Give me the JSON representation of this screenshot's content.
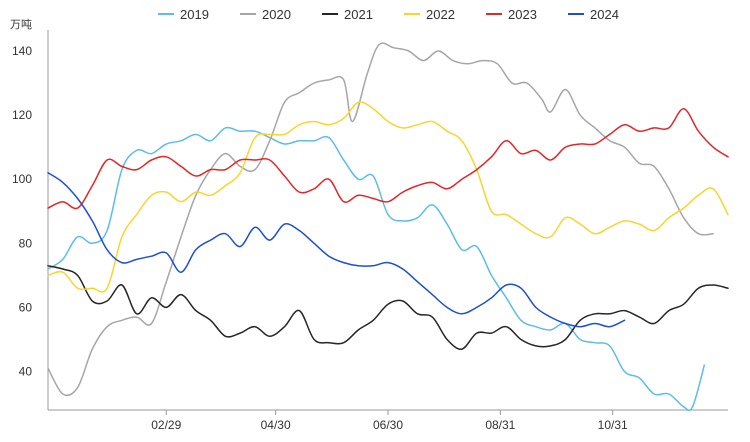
{
  "chart_data": {
    "type": "line",
    "unit": "万吨",
    "x_ticks": [
      "02/29",
      "04/30",
      "06/30",
      "08/31",
      "10/31"
    ],
    "ylim": [
      28,
      145
    ],
    "y_ticks": [
      40,
      60,
      80,
      100,
      120,
      140
    ],
    "grid": false,
    "legend_position": "top",
    "series": [
      {
        "name": "2019",
        "color": "#5bbcf0",
        "points": [
          [
            0,
            72
          ],
          [
            0.5,
            75
          ],
          [
            1,
            82
          ],
          [
            1.5,
            80
          ],
          [
            2,
            84
          ],
          [
            2.5,
            103
          ],
          [
            3,
            109
          ],
          [
            3.5,
            108
          ],
          [
            4,
            111
          ],
          [
            4.5,
            112
          ],
          [
            5,
            114
          ],
          [
            5.5,
            112
          ],
          [
            6,
            116
          ],
          [
            6.5,
            115
          ],
          [
            7,
            115
          ],
          [
            7.5,
            113
          ],
          [
            8,
            111
          ],
          [
            8.5,
            112
          ],
          [
            9,
            112
          ],
          [
            9.5,
            113
          ],
          [
            10,
            106
          ],
          [
            10.5,
            100
          ],
          [
            11,
            101
          ],
          [
            11.5,
            89
          ],
          [
            12,
            87
          ],
          [
            12.5,
            88
          ],
          [
            13,
            92
          ],
          [
            13.5,
            86
          ],
          [
            14,
            78
          ],
          [
            14.5,
            79
          ],
          [
            15,
            70
          ],
          [
            15.5,
            63
          ],
          [
            16,
            56
          ],
          [
            16.5,
            54
          ],
          [
            17,
            53
          ],
          [
            17.5,
            55
          ],
          [
            18,
            50
          ],
          [
            18.5,
            49
          ],
          [
            19,
            48
          ],
          [
            19.5,
            40
          ],
          [
            20,
            38
          ],
          [
            20.5,
            33
          ],
          [
            21,
            33
          ],
          [
            21.5,
            29
          ],
          [
            21.8,
            29
          ],
          [
            22.2,
            42
          ]
        ]
      },
      {
        "name": "2020",
        "color": "#a6a6a6",
        "points": [
          [
            0,
            41
          ],
          [
            0.5,
            33
          ],
          [
            1,
            35
          ],
          [
            1.5,
            47
          ],
          [
            2,
            54
          ],
          [
            2.5,
            56
          ],
          [
            3,
            57
          ],
          [
            3.5,
            55
          ],
          [
            4,
            68
          ],
          [
            4.5,
            82
          ],
          [
            5,
            95
          ],
          [
            5.5,
            103
          ],
          [
            6,
            108
          ],
          [
            6.5,
            104
          ],
          [
            7,
            103
          ],
          [
            7.5,
            112
          ],
          [
            8,
            124
          ],
          [
            8.5,
            127
          ],
          [
            9,
            130
          ],
          [
            9.5,
            131
          ],
          [
            10,
            131
          ],
          [
            10.3,
            118
          ],
          [
            10.8,
            133
          ],
          [
            11.2,
            142
          ],
          [
            11.7,
            141
          ],
          [
            12.2,
            140
          ],
          [
            12.7,
            137
          ],
          [
            13.2,
            140
          ],
          [
            13.7,
            137
          ],
          [
            14.2,
            136
          ],
          [
            14.7,
            137
          ],
          [
            15.2,
            136
          ],
          [
            15.7,
            130
          ],
          [
            16.2,
            130
          ],
          [
            16.7,
            125
          ],
          [
            17,
            121
          ],
          [
            17.5,
            128
          ],
          [
            18,
            120
          ],
          [
            18.5,
            116
          ],
          [
            19,
            112
          ],
          [
            19.5,
            110
          ],
          [
            20,
            105
          ],
          [
            20.5,
            104
          ],
          [
            21,
            97
          ],
          [
            21.5,
            88
          ],
          [
            22,
            83
          ],
          [
            22.5,
            83
          ]
        ]
      },
      {
        "name": "2021",
        "color": "#262626",
        "points": [
          [
            0,
            73
          ],
          [
            0.5,
            72
          ],
          [
            1,
            70
          ],
          [
            1.5,
            62
          ],
          [
            2,
            62
          ],
          [
            2.5,
            67
          ],
          [
            3,
            58
          ],
          [
            3.5,
            63
          ],
          [
            4,
            60
          ],
          [
            4.5,
            64
          ],
          [
            5,
            59
          ],
          [
            5.5,
            56
          ],
          [
            6,
            51
          ],
          [
            6.5,
            52
          ],
          [
            7,
            54
          ],
          [
            7.5,
            51
          ],
          [
            8,
            54
          ],
          [
            8.5,
            59
          ],
          [
            9,
            50
          ],
          [
            9.5,
            49
          ],
          [
            10,
            49
          ],
          [
            10.5,
            53
          ],
          [
            11,
            56
          ],
          [
            11.5,
            61
          ],
          [
            12,
            62
          ],
          [
            12.5,
            58
          ],
          [
            13,
            57
          ],
          [
            13.5,
            50
          ],
          [
            14,
            47
          ],
          [
            14.5,
            52
          ],
          [
            15,
            52
          ],
          [
            15.5,
            54
          ],
          [
            16,
            50
          ],
          [
            16.5,
            48
          ],
          [
            17,
            48
          ],
          [
            17.5,
            50
          ],
          [
            18,
            56
          ],
          [
            18.5,
            58
          ],
          [
            19,
            58
          ],
          [
            19.5,
            59
          ],
          [
            20,
            57
          ],
          [
            20.5,
            55
          ],
          [
            21,
            59
          ],
          [
            21.5,
            61
          ],
          [
            22,
            66
          ],
          [
            22.5,
            67
          ],
          [
            23,
            66
          ]
        ]
      },
      {
        "name": "2022",
        "color": "#fbd42b",
        "points": [
          [
            0,
            70
          ],
          [
            0.5,
            71
          ],
          [
            1,
            66
          ],
          [
            1.5,
            66
          ],
          [
            2,
            66
          ],
          [
            2.5,
            82
          ],
          [
            3,
            89
          ],
          [
            3.5,
            95
          ],
          [
            4,
            96
          ],
          [
            4.5,
            93
          ],
          [
            5,
            96
          ],
          [
            5.5,
            95
          ],
          [
            6,
            98
          ],
          [
            6.5,
            102
          ],
          [
            7,
            113
          ],
          [
            7.5,
            114
          ],
          [
            8,
            114
          ],
          [
            8.5,
            117
          ],
          [
            9,
            118
          ],
          [
            9.5,
            117
          ],
          [
            10,
            119
          ],
          [
            10.5,
            124
          ],
          [
            11,
            122
          ],
          [
            11.5,
            118
          ],
          [
            12,
            116
          ],
          [
            12.5,
            117
          ],
          [
            13,
            118
          ],
          [
            13.5,
            115
          ],
          [
            14,
            112
          ],
          [
            14.5,
            103
          ],
          [
            15,
            90
          ],
          [
            15.5,
            89
          ],
          [
            16,
            86
          ],
          [
            16.5,
            83
          ],
          [
            17,
            82
          ],
          [
            17.5,
            88
          ],
          [
            18,
            86
          ],
          [
            18.5,
            83
          ],
          [
            19,
            85
          ],
          [
            19.5,
            87
          ],
          [
            20,
            86
          ],
          [
            20.5,
            84
          ],
          [
            21,
            88
          ],
          [
            21.5,
            91
          ],
          [
            22,
            95
          ],
          [
            22.5,
            97
          ],
          [
            23,
            89
          ]
        ]
      },
      {
        "name": "2023",
        "color": "#e32626",
        "points": [
          [
            0,
            91
          ],
          [
            0.5,
            93
          ],
          [
            1,
            91
          ],
          [
            1.5,
            98
          ],
          [
            2,
            106
          ],
          [
            2.5,
            104
          ],
          [
            3,
            103
          ],
          [
            3.5,
            106
          ],
          [
            4,
            107
          ],
          [
            4.5,
            104
          ],
          [
            5,
            101
          ],
          [
            5.5,
            103
          ],
          [
            6,
            103
          ],
          [
            6.5,
            106
          ],
          [
            7,
            106
          ],
          [
            7.5,
            106
          ],
          [
            8,
            101
          ],
          [
            8.5,
            96
          ],
          [
            9,
            97
          ],
          [
            9.5,
            100
          ],
          [
            10,
            93
          ],
          [
            10.5,
            95
          ],
          [
            11,
            94
          ],
          [
            11.5,
            93
          ],
          [
            12,
            96
          ],
          [
            12.5,
            98
          ],
          [
            13,
            99
          ],
          [
            13.5,
            97
          ],
          [
            14,
            100
          ],
          [
            14.5,
            103
          ],
          [
            15,
            107
          ],
          [
            15.5,
            112
          ],
          [
            16,
            108
          ],
          [
            16.5,
            109
          ],
          [
            17,
            106
          ],
          [
            17.5,
            110
          ],
          [
            18,
            111
          ],
          [
            18.5,
            111
          ],
          [
            19,
            114
          ],
          [
            19.5,
            117
          ],
          [
            20,
            115
          ],
          [
            20.5,
            116
          ],
          [
            21,
            116
          ],
          [
            21.5,
            122
          ],
          [
            22,
            115
          ],
          [
            22.5,
            110
          ],
          [
            23,
            107
          ]
        ]
      },
      {
        "name": "2024",
        "color": "#1c4fd4",
        "points": [
          [
            0,
            102
          ],
          [
            0.5,
            99
          ],
          [
            1,
            94
          ],
          [
            1.5,
            87
          ],
          [
            2,
            78
          ],
          [
            2.5,
            74
          ],
          [
            3,
            75
          ],
          [
            3.5,
            76
          ],
          [
            4,
            77
          ],
          [
            4.5,
            71
          ],
          [
            5,
            78
          ],
          [
            5.5,
            81
          ],
          [
            6,
            83
          ],
          [
            6.5,
            79
          ],
          [
            7,
            85
          ],
          [
            7.5,
            81
          ],
          [
            8,
            86
          ],
          [
            8.5,
            84
          ],
          [
            9,
            80
          ],
          [
            9.5,
            76
          ],
          [
            10,
            74
          ],
          [
            10.5,
            73
          ],
          [
            11,
            73
          ],
          [
            11.5,
            74
          ],
          [
            12,
            72
          ],
          [
            12.5,
            68
          ],
          [
            13,
            64
          ],
          [
            13.5,
            60
          ],
          [
            14,
            58
          ],
          [
            14.5,
            60
          ],
          [
            15,
            63
          ],
          [
            15.5,
            67
          ],
          [
            16,
            66
          ],
          [
            16.5,
            60
          ],
          [
            17,
            57
          ],
          [
            17.5,
            55
          ],
          [
            18,
            54
          ],
          [
            18.5,
            55
          ],
          [
            19,
            54
          ],
          [
            19.5,
            56
          ]
        ]
      }
    ]
  }
}
